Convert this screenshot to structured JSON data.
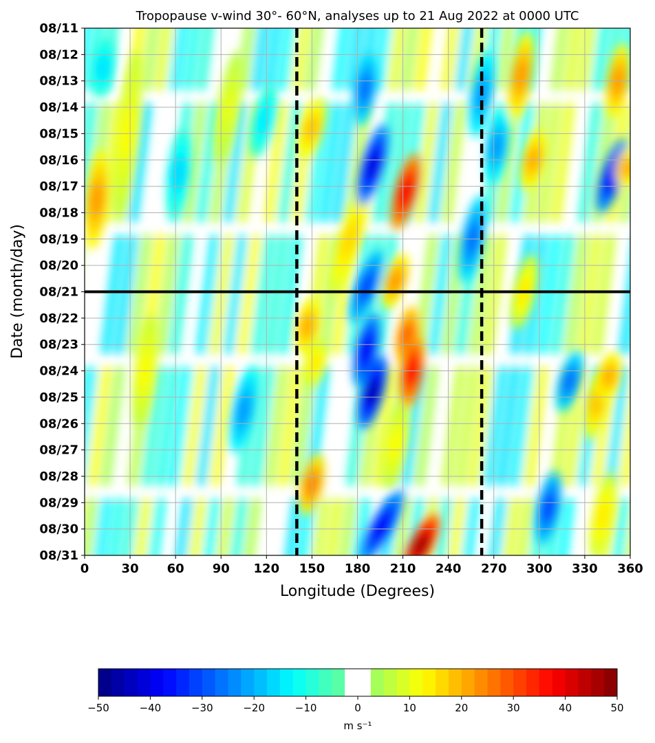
{
  "chart_data": {
    "type": "heatmap",
    "title": "Tropopause v-wind 30°- 60°N, analyses up to 21 Aug 2022 at 0000 UTC",
    "xlabel": "Longitude (Degrees)",
    "ylabel": "Date (month/day)",
    "xlim": [
      0,
      360
    ],
    "x_ticks": [
      "0",
      "30",
      "60",
      "90",
      "120",
      "150",
      "180",
      "210",
      "240",
      "270",
      "300",
      "330",
      "360"
    ],
    "y_ticks": [
      "08/11",
      "08/12",
      "08/13",
      "08/14",
      "08/15",
      "08/16",
      "08/17",
      "08/18",
      "08/19",
      "08/20",
      "08/21",
      "08/22",
      "08/23",
      "08/24",
      "08/25",
      "08/26",
      "08/27",
      "08/28",
      "08/29",
      "08/30",
      "08/31"
    ],
    "grid": true,
    "reference_lines": {
      "horizontal_date": "08/21",
      "vertical_longitudes": [
        140,
        262
      ]
    },
    "colorbar": {
      "label": "m s⁻¹",
      "range": [
        -50,
        50
      ],
      "tick_labels": [
        "−50",
        "−40",
        "−30",
        "−20",
        "−10",
        "0",
        "10",
        "20",
        "30",
        "40",
        "50"
      ],
      "step": 2.5
    },
    "features": [
      {
        "lon": 8,
        "day": 6.5,
        "value": 22,
        "len": 3.5,
        "dlon": -6
      },
      {
        "lon": 12,
        "day": 1.5,
        "value": -15,
        "len": 2,
        "dlon": -4
      },
      {
        "lon": 28,
        "day": 4,
        "value": 12,
        "len": 6,
        "dlon": -12
      },
      {
        "lon": 40,
        "day": 13,
        "value": 12,
        "len": 4,
        "dlon": -8
      },
      {
        "lon": 62,
        "day": 5.5,
        "value": -16,
        "len": 3,
        "dlon": -6
      },
      {
        "lon": 95,
        "day": 3,
        "value": 10,
        "len": 4,
        "dlon": -12
      },
      {
        "lon": 105,
        "day": 14.5,
        "value": -22,
        "len": 3,
        "dlon": -10
      },
      {
        "lon": 118,
        "day": 3.5,
        "value": -14,
        "len": 2.5,
        "dlon": -10
      },
      {
        "lon": 147,
        "day": 11.3,
        "value": 20,
        "len": 1.8,
        "dlon": -6
      },
      {
        "lon": 150,
        "day": 3.8,
        "value": 18,
        "len": 2,
        "dlon": -10
      },
      {
        "lon": 152,
        "day": 12.7,
        "value": 14,
        "len": 1.5,
        "dlon": -6
      },
      {
        "lon": 150,
        "day": 17.3,
        "value": 24,
        "len": 2,
        "dlon": -8
      },
      {
        "lon": 175,
        "day": 8,
        "value": 16,
        "len": 4,
        "dlon": -22
      },
      {
        "lon": 185,
        "day": 2.3,
        "value": -26,
        "len": 2.5,
        "dlon": -6
      },
      {
        "lon": 190,
        "day": 5.2,
        "value": -40,
        "len": 2.8,
        "dlon": -14
      },
      {
        "lon": 186,
        "day": 9.8,
        "value": -30,
        "len": 2.5,
        "dlon": -16
      },
      {
        "lon": 186,
        "day": 12.2,
        "value": -38,
        "len": 2.5,
        "dlon": -10
      },
      {
        "lon": 190,
        "day": 13.8,
        "value": -44,
        "len": 2.5,
        "dlon": -12
      },
      {
        "lon": 196,
        "day": 18.9,
        "value": -38,
        "len": 2.5,
        "dlon": -24
      },
      {
        "lon": 205,
        "day": 15.8,
        "value": 12,
        "len": 3,
        "dlon": -10
      },
      {
        "lon": 212,
        "day": 6.2,
        "value": 38,
        "len": 2.6,
        "dlon": -12
      },
      {
        "lon": 205,
        "day": 9.6,
        "value": 22,
        "len": 1.8,
        "dlon": -10
      },
      {
        "lon": 213,
        "day": 11.7,
        "value": 28,
        "len": 2,
        "dlon": -6
      },
      {
        "lon": 216,
        "day": 13,
        "value": 36,
        "len": 2.5,
        "dlon": -6
      },
      {
        "lon": 222,
        "day": 19.6,
        "value": 46,
        "len": 2,
        "dlon": -18
      },
      {
        "lon": 262,
        "day": 2.5,
        "value": -22,
        "len": 3,
        "dlon": -8
      },
      {
        "lon": 256,
        "day": 8,
        "value": -26,
        "len": 3,
        "dlon": -10
      },
      {
        "lon": 272,
        "day": 4.5,
        "value": -22,
        "len": 2.5,
        "dlon": -6
      },
      {
        "lon": 288,
        "day": 1.8,
        "value": 22,
        "len": 3,
        "dlon": -8
      },
      {
        "lon": 296,
        "day": 5,
        "value": 20,
        "len": 2,
        "dlon": -8
      },
      {
        "lon": 290,
        "day": 10,
        "value": 14,
        "len": 2.5,
        "dlon": -10
      },
      {
        "lon": 306,
        "day": 18.2,
        "value": -30,
        "len": 2.5,
        "dlon": -8
      },
      {
        "lon": 320,
        "day": 13.4,
        "value": -26,
        "len": 2,
        "dlon": -10
      },
      {
        "lon": 338,
        "day": 14.2,
        "value": 18,
        "len": 2.5,
        "dlon": -8
      },
      {
        "lon": 346,
        "day": 13.2,
        "value": 20,
        "len": 1.5,
        "dlon": -6
      },
      {
        "lon": 352,
        "day": 2,
        "value": 22,
        "len": 2.5,
        "dlon": -6
      },
      {
        "lon": 348,
        "day": 5.6,
        "value": -38,
        "len": 2.5,
        "dlon": -14
      },
      {
        "lon": 358,
        "day": 5.3,
        "value": 20,
        "len": 1.2,
        "dlon": -4
      },
      {
        "lon": 342,
        "day": 18.5,
        "value": 14,
        "len": 3,
        "dlon": -10
      }
    ]
  }
}
